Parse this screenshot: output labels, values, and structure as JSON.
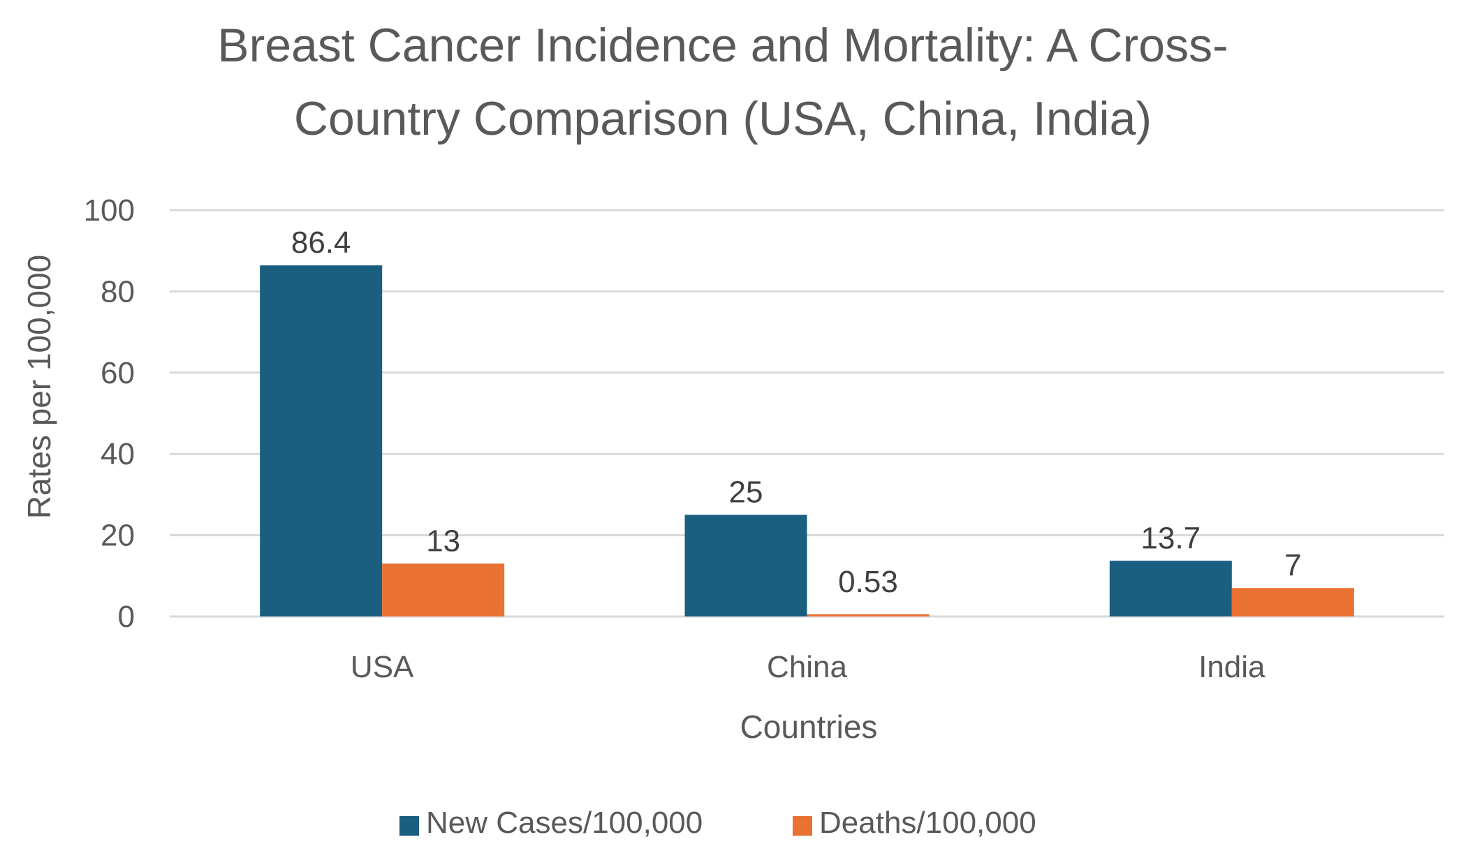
{
  "chart_data": {
    "type": "bar",
    "title": "Breast Cancer Incidence and Mortality: A Cross-Country Comparison (USA, China, India)",
    "title_lines": [
      "Breast Cancer Incidence and Mortality: A Cross-",
      "Country Comparison (USA, China, India)"
    ],
    "xlabel": "Countries",
    "ylabel": "Rates per 100,000",
    "categories": [
      "USA",
      "China",
      "India"
    ],
    "series": [
      {
        "name": "New Cases/100,000",
        "color": "#1a5e80",
        "values": [
          86.4,
          25,
          13.7
        ],
        "labels": [
          "86.4",
          "25",
          "13.7"
        ]
      },
      {
        "name": "Deaths/100,000",
        "color": "#e97132",
        "values": [
          13,
          0.53,
          7
        ],
        "labels": [
          "13",
          "0.53",
          "7"
        ]
      }
    ],
    "ylim": [
      0,
      100
    ],
    "yticks": [
      0,
      20,
      40,
      60,
      80,
      100
    ],
    "grid": true,
    "legend_position": "bottom"
  }
}
